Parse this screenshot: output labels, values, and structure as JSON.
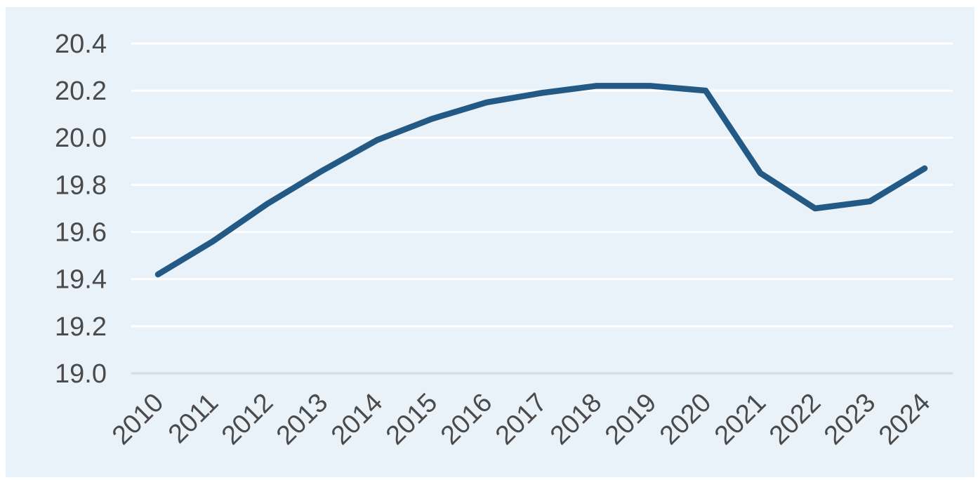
{
  "chart_data": {
    "type": "line",
    "title": "",
    "xlabel": "",
    "ylabel": "",
    "x": [
      "2010",
      "2011",
      "2012",
      "2013",
      "2014",
      "2015",
      "2016",
      "2017",
      "2018",
      "2019",
      "2020",
      "2021",
      "2022",
      "2023",
      "2024"
    ],
    "series": [
      {
        "name": "value",
        "values": [
          19.42,
          19.56,
          19.72,
          19.86,
          19.99,
          20.08,
          20.15,
          20.19,
          20.22,
          20.22,
          20.2,
          19.85,
          19.7,
          19.73,
          19.87
        ]
      }
    ],
    "ylim": [
      19.0,
      20.4
    ],
    "ytick_step": 0.2,
    "yticks": [
      "20.4",
      "20.2",
      "20.0",
      "19.8",
      "19.6",
      "19.4",
      "19.2",
      "19.0"
    ],
    "grid": true,
    "legend_position": "none",
    "x_labels_rotation_deg": 45,
    "colors": {
      "line": "#235a85",
      "panel_background": "#e9f1f9",
      "page_background": "#ffffff",
      "gridline": "#ffffff",
      "axis_line": "#d8dbdf",
      "tick_label": "#4a4a4a"
    }
  }
}
